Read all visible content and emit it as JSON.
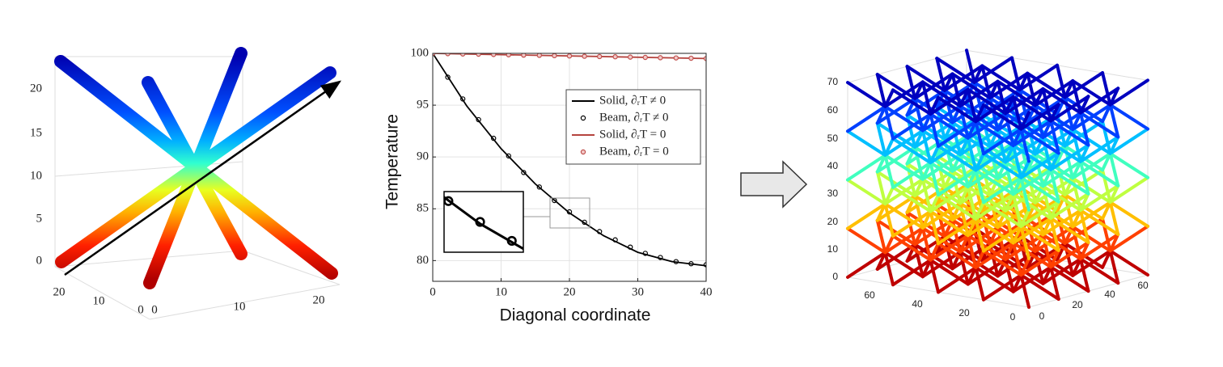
{
  "left_panel": {
    "zticks": [
      0,
      5,
      10,
      15,
      20
    ],
    "xticks": [
      20,
      10,
      0
    ],
    "yticks": [
      0,
      10,
      20
    ]
  },
  "chart_data": {
    "type": "line",
    "xlabel": "Diagonal coordinate",
    "ylabel": "Temperature",
    "xlim": [
      0,
      40
    ],
    "ylim": [
      78,
      100
    ],
    "xticks": [
      0,
      10,
      20,
      30,
      40
    ],
    "yticks": [
      80,
      85,
      90,
      95,
      100
    ],
    "grid": true,
    "legend": "upper right",
    "series": [
      {
        "name": "Solid,  ∂ᵣT ≠ 0",
        "color": "#000000",
        "style": "line",
        "x": [
          0,
          5,
          10,
          15,
          20,
          25,
          30,
          35,
          40
        ],
        "values": [
          100,
          94.9,
          90.8,
          87.4,
          84.6,
          82.4,
          80.8,
          79.9,
          79.5
        ]
      },
      {
        "name": "Beam,  ∂ᵣT ≠ 0",
        "color": "#000000",
        "style": "markers",
        "x": [
          0,
          2.2,
          4.4,
          6.7,
          8.9,
          11.1,
          13.3,
          15.6,
          17.8,
          20,
          22.2,
          24.4,
          26.7,
          28.9,
          31.1,
          33.3,
          35.6,
          37.8,
          40
        ],
        "values": [
          100,
          97.7,
          95.6,
          93.6,
          91.8,
          90.1,
          88.5,
          87.1,
          85.8,
          84.7,
          83.7,
          82.8,
          82.0,
          81.3,
          80.7,
          80.3,
          79.9,
          79.7,
          79.6
        ]
      },
      {
        "name": "Solid,  ∂ᵣT = 0",
        "color": "#b5443f",
        "style": "line",
        "x": [
          0,
          40
        ],
        "values": [
          100,
          99.5
        ]
      },
      {
        "name": "Beam,  ∂ᵣT = 0",
        "color": "#c0504d",
        "style": "markers",
        "x": [
          0,
          2.2,
          4.4,
          6.7,
          8.9,
          11.1,
          13.3,
          15.6,
          17.8,
          20,
          22.2,
          24.4,
          26.7,
          28.9,
          31.1,
          33.3,
          35.6,
          37.8,
          40
        ],
        "values": [
          100,
          99.97,
          99.94,
          99.92,
          99.89,
          99.86,
          99.83,
          99.81,
          99.78,
          99.75,
          99.72,
          99.69,
          99.67,
          99.64,
          99.61,
          99.58,
          99.56,
          99.53,
          99.5
        ]
      }
    ]
  },
  "right_panel": {
    "zticks": [
      0,
      10,
      20,
      30,
      40,
      50,
      60,
      70
    ],
    "xticks": [
      60,
      40,
      20,
      0
    ],
    "yticks": [
      0,
      20,
      40,
      60
    ]
  }
}
